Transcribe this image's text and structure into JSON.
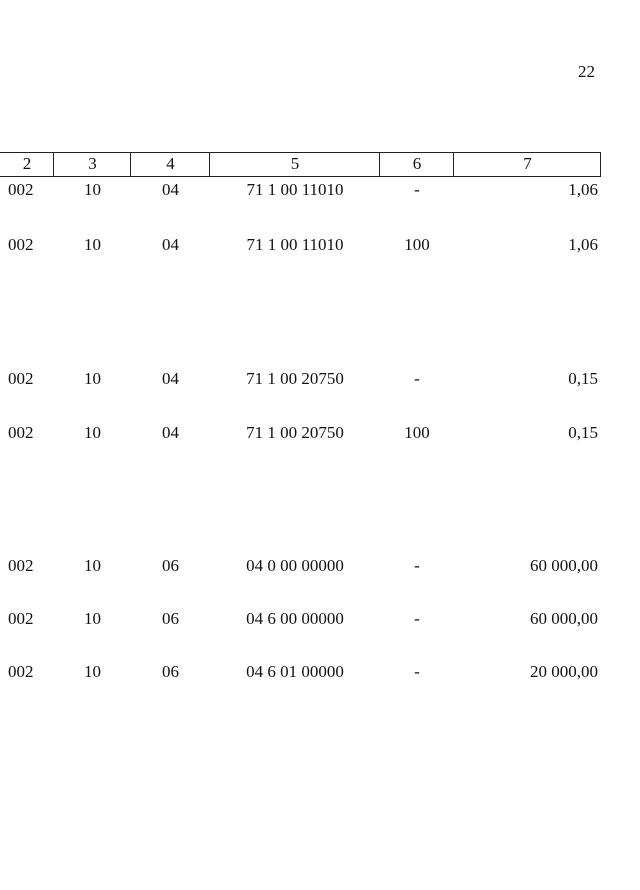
{
  "page_number": "22",
  "table": {
    "header": [
      "2",
      "3",
      "4",
      "5",
      "6",
      "7"
    ],
    "rows": [
      [
        "002",
        "10",
        "04",
        "71 1 00 11010",
        "-",
        "1,06"
      ],
      [
        "002",
        "10",
        "04",
        "71 1 00 11010",
        "100",
        "1,06"
      ],
      [
        "002",
        "10",
        "04",
        "71 1 00 20750",
        "-",
        "0,15"
      ],
      [
        "002",
        "10",
        "04",
        "71 1 00 20750",
        "100",
        "0,15"
      ],
      [
        "002",
        "10",
        "06",
        "04 0 00 00000",
        "-",
        "60 000,00"
      ],
      [
        "002",
        "10",
        "06",
        "04 6 00 00000",
        "-",
        "60 000,00"
      ],
      [
        "002",
        "10",
        "06",
        "04 6 01 00000",
        "-",
        "20 000,00"
      ]
    ]
  }
}
